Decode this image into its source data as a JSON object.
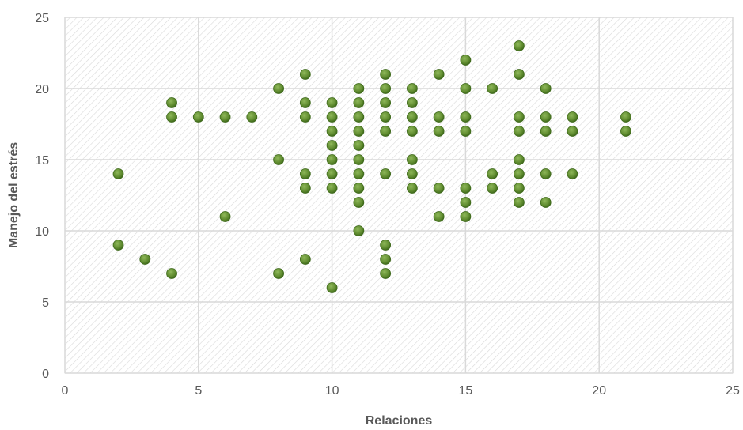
{
  "chart_data": {
    "type": "scatter",
    "title": "",
    "xlabel": "Relaciones",
    "ylabel": "Manejo del estrés",
    "xlim": [
      0,
      25
    ],
    "ylim": [
      0,
      25
    ],
    "x_ticks": [
      0,
      5,
      10,
      15,
      20,
      25
    ],
    "y_ticks": [
      0,
      5,
      10,
      15,
      20,
      25
    ],
    "grid": true,
    "legend": "none",
    "marker_color": "#5e8a2e",
    "marker_edge_color": "#3f6a1c",
    "plot_background": "hatched",
    "points": [
      [
        2,
        14
      ],
      [
        2,
        9
      ],
      [
        3,
        8
      ],
      [
        4,
        19
      ],
      [
        4,
        18
      ],
      [
        4,
        7
      ],
      [
        5,
        18
      ],
      [
        6,
        18
      ],
      [
        6,
        11
      ],
      [
        7,
        18
      ],
      [
        8,
        20
      ],
      [
        8,
        15
      ],
      [
        8,
        7
      ],
      [
        9,
        21
      ],
      [
        9,
        19
      ],
      [
        9,
        18
      ],
      [
        9,
        14
      ],
      [
        9,
        13
      ],
      [
        9,
        8
      ],
      [
        10,
        19
      ],
      [
        10,
        18
      ],
      [
        10,
        17
      ],
      [
        10,
        16
      ],
      [
        10,
        15
      ],
      [
        10,
        14
      ],
      [
        10,
        13
      ],
      [
        10,
        6
      ],
      [
        11,
        20
      ],
      [
        11,
        19
      ],
      [
        11,
        18
      ],
      [
        11,
        17
      ],
      [
        11,
        16
      ],
      [
        11,
        15
      ],
      [
        11,
        14
      ],
      [
        11,
        13
      ],
      [
        11,
        12
      ],
      [
        11,
        10
      ],
      [
        12,
        21
      ],
      [
        12,
        20
      ],
      [
        12,
        19
      ],
      [
        12,
        18
      ],
      [
        12,
        17
      ],
      [
        12,
        14
      ],
      [
        12,
        9
      ],
      [
        12,
        8
      ],
      [
        12,
        7
      ],
      [
        13,
        20
      ],
      [
        13,
        19
      ],
      [
        13,
        18
      ],
      [
        13,
        17
      ],
      [
        13,
        15
      ],
      [
        13,
        14
      ],
      [
        13,
        13
      ],
      [
        14,
        21
      ],
      [
        14,
        18
      ],
      [
        14,
        17
      ],
      [
        14,
        13
      ],
      [
        14,
        11
      ],
      [
        15,
        22
      ],
      [
        15,
        20
      ],
      [
        15,
        18
      ],
      [
        15,
        17
      ],
      [
        15,
        13
      ],
      [
        15,
        12
      ],
      [
        15,
        11
      ],
      [
        16,
        20
      ],
      [
        16,
        14
      ],
      [
        16,
        13
      ],
      [
        17,
        23
      ],
      [
        17,
        21
      ],
      [
        17,
        18
      ],
      [
        17,
        17
      ],
      [
        17,
        15
      ],
      [
        17,
        14
      ],
      [
        17,
        13
      ],
      [
        17,
        12
      ],
      [
        18,
        20
      ],
      [
        18,
        18
      ],
      [
        18,
        17
      ],
      [
        18,
        14
      ],
      [
        18,
        12
      ],
      [
        19,
        18
      ],
      [
        19,
        17
      ],
      [
        19,
        14
      ],
      [
        21,
        18
      ],
      [
        21,
        17
      ]
    ]
  }
}
